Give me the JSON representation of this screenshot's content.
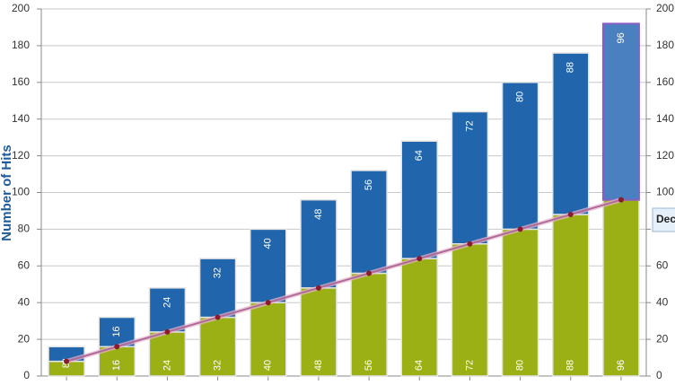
{
  "chart_data": {
    "type": "stacked-bar-line",
    "y_axis_label": "Number of Hits",
    "categories": [
      null,
      null,
      null,
      null,
      null,
      null,
      null,
      null,
      null,
      null,
      null,
      null
    ],
    "series": [
      {
        "name": null,
        "kind": "bar",
        "color": "#9bb015",
        "values": [
          8,
          16,
          24,
          32,
          40,
          48,
          56,
          64,
          72,
          80,
          88,
          96
        ]
      },
      {
        "name": null,
        "kind": "bar",
        "color": "#2166ac",
        "values": [
          8,
          16,
          24,
          32,
          40,
          48,
          56,
          64,
          72,
          80,
          88,
          96
        ]
      },
      {
        "name": null,
        "kind": "line",
        "color": "#b06a9a",
        "marker_color": "#8b1c2c",
        "values": [
          8,
          16,
          24,
          32,
          40,
          48,
          56,
          64,
          72,
          80,
          88,
          96
        ]
      }
    ],
    "ylim": [
      0,
      200
    ],
    "yticks": [
      0,
      20,
      40,
      60,
      80,
      100,
      120,
      140,
      160,
      180,
      200
    ],
    "y2lim": [
      0,
      200
    ],
    "y2ticks": [
      0,
      20,
      40,
      60,
      80,
      100,
      120,
      140,
      160,
      180,
      200
    ],
    "grid": true,
    "hover_index": 11,
    "hover_color": "#4a80c0",
    "tooltip": "Dec"
  }
}
